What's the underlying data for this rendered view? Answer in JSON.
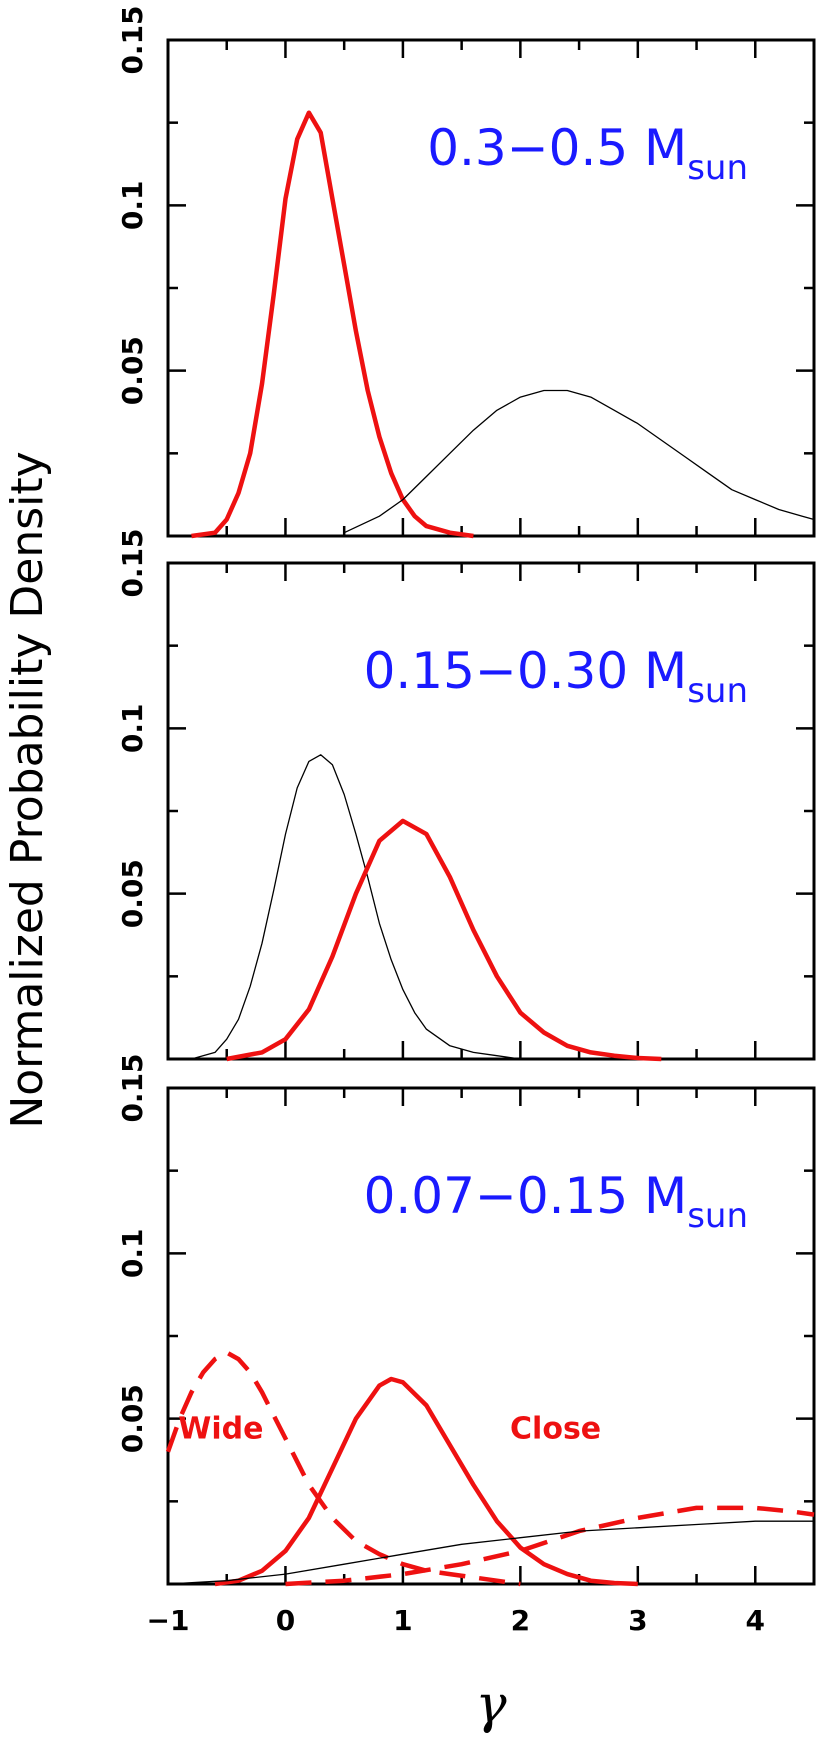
{
  "chart_data": {
    "type": "line",
    "ylabel": "Normalized Probability Density",
    "xlabel": "γ",
    "xlim": [
      -1,
      4.5
    ],
    "ylim": [
      0,
      0.15
    ],
    "x_ticks": [
      "−1",
      "0",
      "1",
      "2",
      "3",
      "4"
    ],
    "y_ticks": [
      "0.05",
      "0.1",
      "0.15"
    ],
    "colors": {
      "red": "#ee1111",
      "black": "#000000",
      "title": "#1a1aff"
    },
    "panels": [
      {
        "title_main": "0.3−0.5 M",
        "title_sub": "sun",
        "annotations": [],
        "series": [
          {
            "color": "red",
            "style": "solid",
            "weight": "thick",
            "x": [
              -0.8,
              -0.6,
              -0.5,
              -0.4,
              -0.3,
              -0.2,
              -0.1,
              0,
              0.1,
              0.2,
              0.3,
              0.4,
              0.5,
              0.6,
              0.7,
              0.8,
              0.9,
              1.0,
              1.1,
              1.2,
              1.4,
              1.6
            ],
            "y": [
              0,
              0.001,
              0.005,
              0.013,
              0.025,
              0.046,
              0.073,
              0.102,
              0.12,
              0.128,
              0.122,
              0.102,
              0.082,
              0.062,
              0.044,
              0.03,
              0.019,
              0.011,
              0.006,
              0.003,
              0.001,
              0
            ]
          },
          {
            "color": "black",
            "style": "solid",
            "weight": "thin",
            "x": [
              0.5,
              0.8,
              1.0,
              1.2,
              1.4,
              1.6,
              1.8,
              2.0,
              2.2,
              2.4,
              2.6,
              2.8,
              3.0,
              3.2,
              3.4,
              3.6,
              3.8,
              4.0,
              4.2,
              4.4,
              4.5
            ],
            "y": [
              0.001,
              0.006,
              0.011,
              0.018,
              0.025,
              0.032,
              0.038,
              0.042,
              0.044,
              0.044,
              0.042,
              0.038,
              0.034,
              0.029,
              0.024,
              0.019,
              0.014,
              0.011,
              0.008,
              0.006,
              0.005
            ]
          }
        ]
      },
      {
        "title_main": "0.15−0.30 M",
        "title_sub": "sun",
        "annotations": [],
        "series": [
          {
            "color": "black",
            "style": "solid",
            "weight": "thin",
            "x": [
              -0.8,
              -0.6,
              -0.5,
              -0.4,
              -0.3,
              -0.2,
              -0.1,
              0,
              0.1,
              0.2,
              0.3,
              0.4,
              0.5,
              0.6,
              0.7,
              0.8,
              0.9,
              1.0,
              1.1,
              1.2,
              1.4,
              1.6,
              1.8,
              2.0
            ],
            "y": [
              0,
              0.002,
              0.006,
              0.012,
              0.022,
              0.035,
              0.051,
              0.068,
              0.082,
              0.09,
              0.092,
              0.089,
              0.08,
              0.068,
              0.055,
              0.041,
              0.03,
              0.021,
              0.014,
              0.009,
              0.004,
              0.002,
              0.001,
              0
            ]
          },
          {
            "color": "red",
            "style": "solid",
            "weight": "thick",
            "x": [
              -0.5,
              -0.2,
              0,
              0.2,
              0.4,
              0.6,
              0.8,
              1.0,
              1.2,
              1.4,
              1.6,
              1.8,
              2.0,
              2.2,
              2.4,
              2.6,
              2.8,
              3.0,
              3.2
            ],
            "y": [
              0,
              0.002,
              0.006,
              0.015,
              0.031,
              0.05,
              0.066,
              0.072,
              0.068,
              0.055,
              0.039,
              0.025,
              0.014,
              0.008,
              0.004,
              0.002,
              0.001,
              0.0003,
              0
            ]
          }
        ]
      },
      {
        "title_main": "0.07−0.15 M",
        "title_sub": "sun",
        "annotations": [
          {
            "text": "Wide",
            "x": -0.55,
            "y": 0.044
          },
          {
            "text": "Close",
            "x": 2.3,
            "y": 0.044
          }
        ],
        "series": [
          {
            "color": "red",
            "style": "dashed",
            "weight": "thick",
            "x": [
              -1.0,
              -0.9,
              -0.8,
              -0.7,
              -0.6,
              -0.5,
              -0.4,
              -0.3,
              -0.2,
              -0.1,
              0,
              0.1,
              0.2,
              0.4,
              0.6,
              0.8,
              1.0,
              1.2,
              1.4,
              1.6,
              1.8,
              2.0
            ],
            "y": [
              0.04,
              0.05,
              0.058,
              0.064,
              0.068,
              0.07,
              0.068,
              0.064,
              0.058,
              0.051,
              0.044,
              0.037,
              0.03,
              0.02,
              0.013,
              0.009,
              0.006,
              0.004,
              0.003,
              0.002,
              0.001,
              0
            ]
          },
          {
            "color": "red",
            "style": "solid",
            "weight": "thick",
            "x": [
              -0.6,
              -0.4,
              -0.2,
              0,
              0.2,
              0.4,
              0.6,
              0.8,
              0.9,
              1.0,
              1.2,
              1.4,
              1.6,
              1.8,
              2.0,
              2.2,
              2.4,
              2.6,
              2.8,
              3.0
            ],
            "y": [
              0,
              0.001,
              0.004,
              0.01,
              0.02,
              0.035,
              0.05,
              0.06,
              0.062,
              0.061,
              0.054,
              0.042,
              0.03,
              0.019,
              0.011,
              0.006,
              0.003,
              0.001,
              0.0003,
              0
            ]
          },
          {
            "color": "red",
            "style": "dashed",
            "weight": "thick",
            "x": [
              0,
              0.5,
              1.0,
              1.5,
              2.0,
              2.5,
              3.0,
              3.5,
              3.7,
              4.0,
              4.3,
              4.5
            ],
            "y": [
              0,
              0.001,
              0.003,
              0.006,
              0.01,
              0.016,
              0.02,
              0.023,
              0.023,
              0.023,
              0.022,
              0.021
            ]
          },
          {
            "color": "black",
            "style": "solid",
            "weight": "thin",
            "x": [
              -1.0,
              -0.5,
              0,
              0.5,
              1.0,
              1.5,
              2.0,
              2.5,
              3.0,
              3.5,
              4.0,
              4.5
            ],
            "y": [
              0,
              0.001,
              0.003,
              0.006,
              0.009,
              0.012,
              0.014,
              0.016,
              0.017,
              0.018,
              0.019,
              0.019
            ]
          }
        ]
      }
    ]
  }
}
